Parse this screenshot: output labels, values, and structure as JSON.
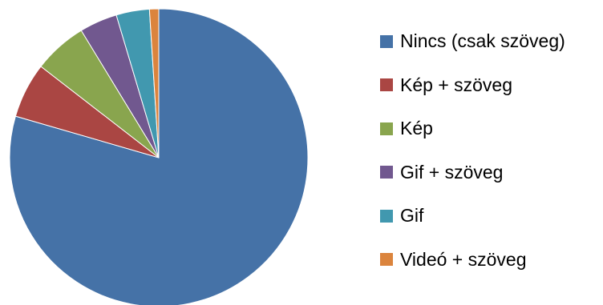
{
  "chart_data": {
    "type": "pie",
    "title": "",
    "legend_position": "right",
    "slices": [
      {
        "label": "Nincs (csak szöveg)",
        "value": 79.5,
        "color": "#4572A7"
      },
      {
        "label": "Kép + szöveg",
        "value": 6.0,
        "color": "#AA4643"
      },
      {
        "label": "Kép",
        "value": 5.8,
        "color": "#89A54E"
      },
      {
        "label": "Gif + szöveg",
        "value": 4.1,
        "color": "#71588F"
      },
      {
        "label": "Gif",
        "value": 3.6,
        "color": "#4198AF"
      },
      {
        "label": "Videó + szöveg",
        "value": 1.0,
        "color": "#DB843D"
      }
    ]
  }
}
